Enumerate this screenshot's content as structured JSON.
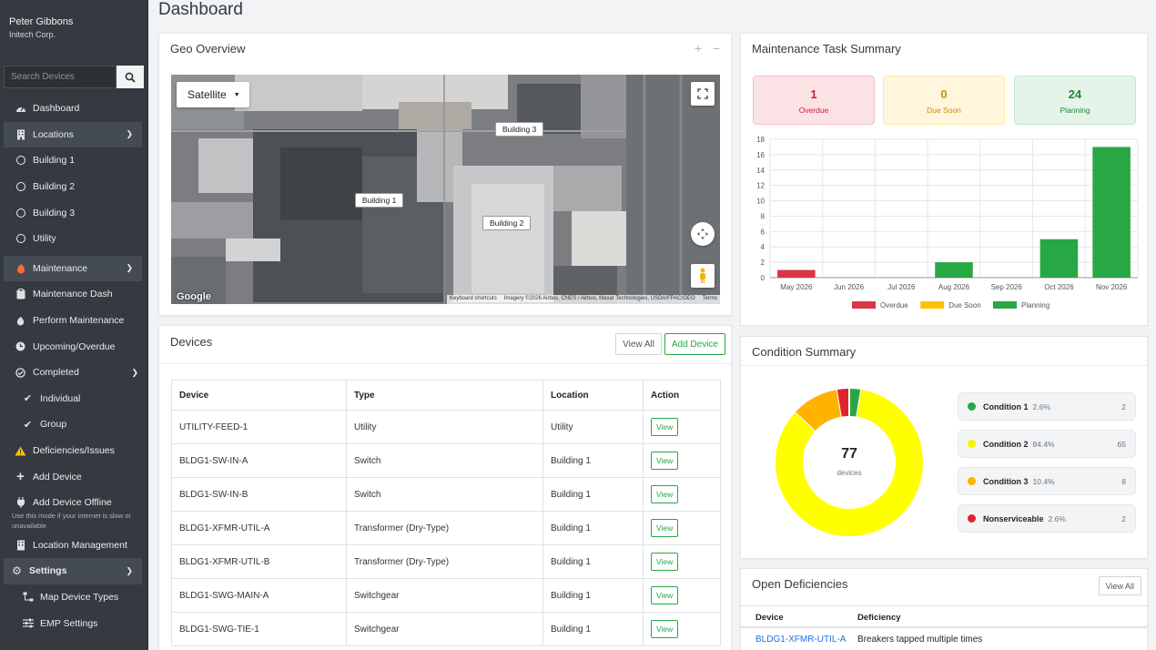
{
  "user": {
    "name": "Peter Gibbons",
    "org": "Initech Corp."
  },
  "search": {
    "placeholder": "Search Devices"
  },
  "nav": {
    "dashboard": "Dashboard",
    "locations": "Locations",
    "building1": "Building 1",
    "building2": "Building 2",
    "building3": "Building 3",
    "utility": "Utility",
    "maintenance": "Maintenance",
    "maintenance_dash": "Maintenance Dash",
    "perform_maintenance": "Perform Maintenance",
    "upcoming_overdue": "Upcoming/Overdue",
    "completed": "Completed",
    "individual": "Individual",
    "group": "Group",
    "deficiencies": "Deficiencies/Issues",
    "add_device": "Add Device",
    "add_device_offline": "Add Device Offline",
    "offline_note": "Use this mode if your internet is slow or unavailable",
    "location_management": "Location Management",
    "settings": "Settings",
    "map_device_types": "Map Device Types",
    "emp_settings": "EMP Settings"
  },
  "page_title": "Dashboard",
  "geo": {
    "title": "Geo Overview",
    "map_type": "Satellite",
    "labels": {
      "b1": "Building 1",
      "b2": "Building 2",
      "b3": "Building 3"
    },
    "attrib_shortcuts": "Keyboard shortcuts",
    "attrib_imagery": "Imagery ©2026 Airbus, CNES / Airbus, Maxar Technologies, USDA/FPAC/GEO",
    "attrib_terms": "Terms",
    "google": "Google"
  },
  "devices": {
    "title": "Devices",
    "view_all": "View All",
    "add_device": "Add Device",
    "columns": [
      "Device",
      "Type",
      "Location",
      "Action"
    ],
    "action_label": "View",
    "rows": [
      [
        "UTILITY-FEED-1",
        "Utility",
        "Utility"
      ],
      [
        "BLDG1-SW-IN-A",
        "Switch",
        "Building 1"
      ],
      [
        "BLDG1-SW-IN-B",
        "Switch",
        "Building 1"
      ],
      [
        "BLDG1-XFMR-UTIL-A",
        "Transformer (Dry-Type)",
        "Building 1"
      ],
      [
        "BLDG1-XFMR-UTIL-B",
        "Transformer (Dry-Type)",
        "Building 1"
      ],
      [
        "BLDG1-SWG-MAIN-A",
        "Switchgear",
        "Building 1"
      ],
      [
        "BLDG1-SWG-TIE-1",
        "Switchgear",
        "Building 1"
      ]
    ]
  },
  "tasks": {
    "title": "Maintenance Task Summary",
    "overdue": {
      "value": "1",
      "label": "Overdue"
    },
    "due_soon": {
      "value": "0",
      "label": "Due Soon"
    },
    "planning": {
      "value": "24",
      "label": "Planning"
    }
  },
  "chart_data": {
    "type": "bar",
    "categories": [
      "May 2026",
      "Jun 2026",
      "Jul 2026",
      "Aug 2026",
      "Sep 2026",
      "Oct 2026",
      "Nov 2026"
    ],
    "series": [
      {
        "name": "Overdue",
        "color": "#dc3545",
        "values": [
          1,
          0,
          0,
          0,
          0,
          0,
          0
        ]
      },
      {
        "name": "Due Soon",
        "color": "#ffc107",
        "values": [
          0,
          0,
          0,
          0,
          0,
          0,
          0
        ]
      },
      {
        "name": "Planning",
        "color": "#28a745",
        "values": [
          0,
          0,
          0,
          2,
          0,
          5,
          17
        ]
      }
    ],
    "ylim": [
      0,
      18
    ],
    "yticks": [
      0,
      2,
      4,
      6,
      8,
      10,
      12,
      14,
      16,
      18
    ],
    "grid": true,
    "legend": "bottom",
    "title": "",
    "xlabel": "",
    "ylabel": ""
  },
  "condition": {
    "title": "Condition Summary",
    "total": "77",
    "total_label": "devices",
    "items": [
      {
        "name": "Condition 1",
        "pct": "2.6%",
        "count": "2",
        "value": 2,
        "color": "#28a745"
      },
      {
        "name": "Condition 2",
        "pct": "84.4%",
        "count": "65",
        "value": 65,
        "color": "#ffff00"
      },
      {
        "name": "Condition 3",
        "pct": "10.4%",
        "count": "8",
        "value": 8,
        "color": "#ffb300"
      },
      {
        "name": "Nonserviceable",
        "pct": "2.6%",
        "count": "2",
        "value": 2,
        "color": "#e0242c"
      }
    ]
  },
  "deficiencies": {
    "title": "Open Deficiencies",
    "view_all": "View All",
    "col_device": "Device",
    "col_deficiency": "Deficiency",
    "rows": [
      {
        "device": "BLDG1-XFMR-UTIL-A",
        "deficiency": "Breakers tapped multiple times"
      }
    ]
  }
}
